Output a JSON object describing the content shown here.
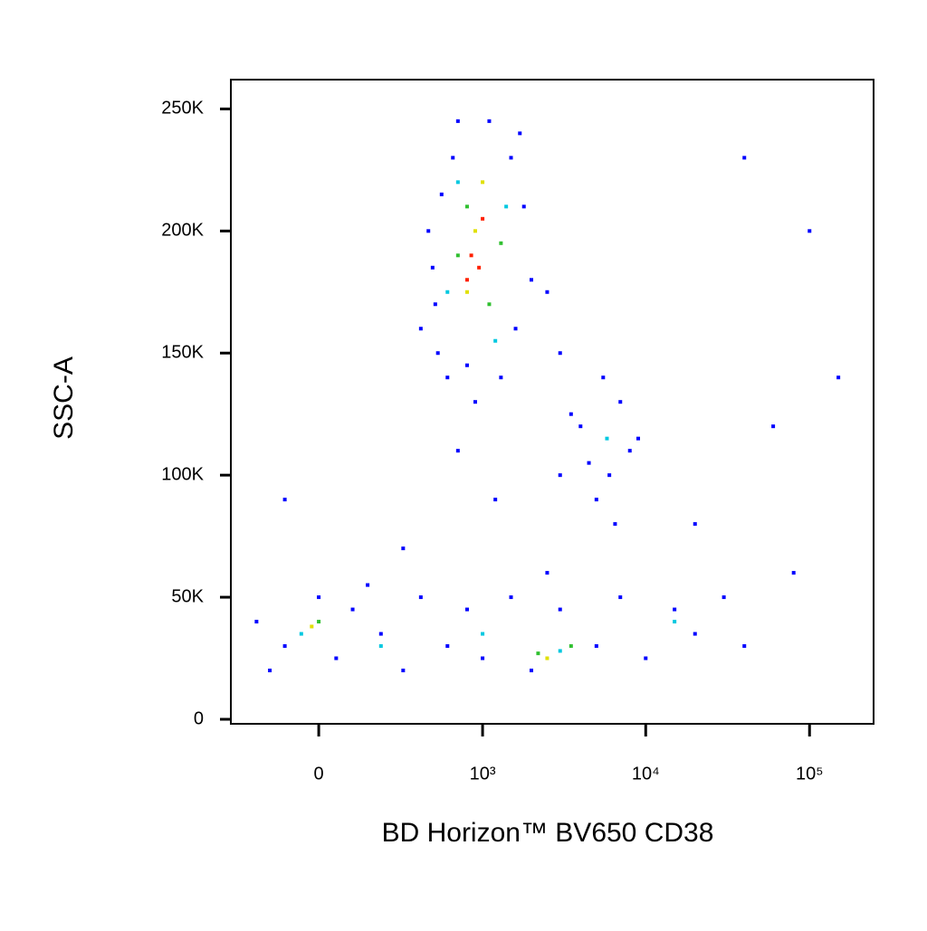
{
  "chart_data": {
    "type": "scatter",
    "x_label": "BD Horizon™ BV650 CD38",
    "y_label": "SSC-A",
    "xscale": "biexponential",
    "xlim": [
      -318,
      246000
    ],
    "ylim": [
      -1850,
      262000
    ],
    "xticks": [
      0,
      {
        "value": 1000,
        "label": "10³"
      },
      {
        "value": 10000,
        "label": "10⁴"
      },
      {
        "value": 100000,
        "label": "10⁵"
      }
    ],
    "yticks": [
      0,
      {
        "value": 50000,
        "label": "50K"
      },
      {
        "value": 100000,
        "label": "100K"
      },
      {
        "value": 150000,
        "label": "150K"
      },
      {
        "value": 200000,
        "label": "200K"
      },
      {
        "value": 250000,
        "label": "250K"
      }
    ],
    "series": [
      {
        "color": "#0000ff",
        "x": [
          450,
          500,
          520,
          600,
          650,
          700,
          550,
          480,
          1500,
          1800,
          2000,
          1600,
          1300,
          900,
          800,
          2500,
          3000,
          1100,
          400,
          1700,
          4000,
          5000,
          6000,
          7000,
          8000,
          5500,
          4500,
          6500,
          9000,
          3500,
          -200,
          -100,
          0,
          50,
          100,
          200,
          300,
          400,
          600,
          800,
          1000,
          1500,
          2000,
          3000,
          5000,
          7000,
          10000,
          15000,
          20000,
          30000,
          40000,
          -150,
          150,
          -100,
          300,
          1200,
          2500,
          20000,
          60000,
          100000,
          150000,
          40000,
          80000,
          3000,
          700
        ],
        "values": [
          200000,
          170000,
          150000,
          140000,
          230000,
          245000,
          215000,
          185000,
          230000,
          210000,
          180000,
          160000,
          140000,
          130000,
          145000,
          175000,
          150000,
          245000,
          160000,
          240000,
          120000,
          90000,
          100000,
          130000,
          110000,
          140000,
          105000,
          80000,
          115000,
          125000,
          40000,
          30000,
          50000,
          25000,
          45000,
          35000,
          20000,
          50000,
          30000,
          45000,
          25000,
          50000,
          20000,
          45000,
          30000,
          50000,
          25000,
          45000,
          35000,
          50000,
          30000,
          20000,
          55000,
          90000,
          70000,
          90000,
          60000,
          80000,
          120000,
          200000,
          140000,
          230000,
          60000,
          100000,
          110000
        ]
      },
      {
        "color": "#00c8e0",
        "x": [
          700,
          1400,
          600,
          1200,
          5800,
          -50,
          200,
          1000,
          3000,
          15000
        ],
        "values": [
          220000,
          210000,
          175000,
          155000,
          115000,
          35000,
          30000,
          35000,
          28000,
          40000
        ]
      },
      {
        "color": "#30c030",
        "x": [
          800,
          1100,
          700,
          1300,
          0,
          2200,
          3500
        ],
        "values": [
          210000,
          170000,
          190000,
          195000,
          40000,
          27000,
          30000
        ]
      },
      {
        "color": "#e0e000",
        "x": [
          900,
          1000,
          800,
          -20,
          2500
        ],
        "values": [
          200000,
          220000,
          175000,
          38000,
          25000
        ]
      },
      {
        "color": "#ff2000",
        "x": [
          850,
          950,
          1000,
          800
        ],
        "values": [
          190000,
          185000,
          205000,
          180000
        ]
      }
    ]
  }
}
